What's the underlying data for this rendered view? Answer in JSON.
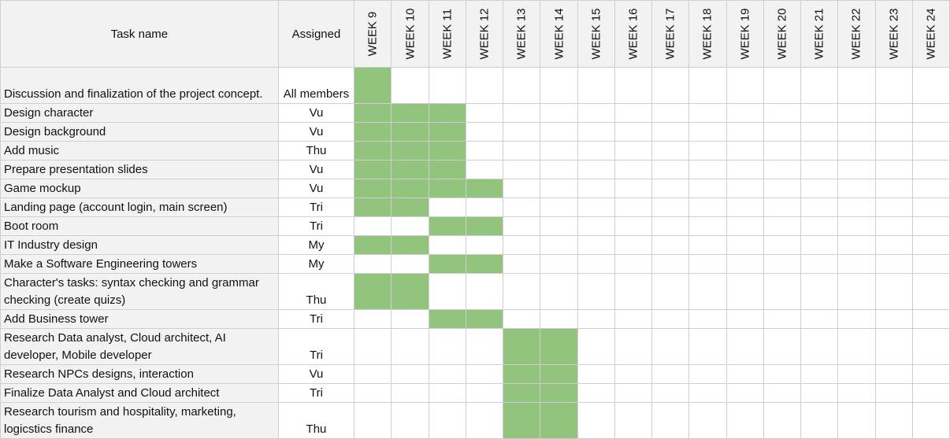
{
  "header": {
    "task_name": "Task name",
    "assigned": "Assigned",
    "weeks": [
      "WEEK 9",
      "WEEK 10",
      "WEEK 11",
      "WEEK 12",
      "WEEK 13",
      "WEEK 14",
      "WEEK 15",
      "WEEK 16",
      "WEEK 17",
      "WEEK 18",
      "WEEK 19",
      "WEEK 20",
      "WEEK 21",
      "WEEK 22",
      "WEEK 23",
      "WEEK 24"
    ]
  },
  "colors": {
    "filled": "#93c47d",
    "header_bg": "#f2f2f2"
  },
  "rows": [
    {
      "task": "Discussion and finalization of the project concept.",
      "assigned": "All members",
      "weeks": [
        9
      ]
    },
    {
      "task": "Design character",
      "assigned": "Vu",
      "weeks": [
        9,
        10,
        11
      ]
    },
    {
      "task": "Design background",
      "assigned": "Vu",
      "weeks": [
        9,
        10,
        11
      ]
    },
    {
      "task": "Add music",
      "assigned": "Thu",
      "weeks": [
        9,
        10,
        11
      ]
    },
    {
      "task": "Prepare presentation slides",
      "assigned": "Vu",
      "weeks": [
        9,
        10,
        11
      ]
    },
    {
      "task": "Game mockup",
      "assigned": "Vu",
      "weeks": [
        9,
        10,
        11,
        12
      ]
    },
    {
      "task": "Landing page (account login, main screen)",
      "assigned": "Tri",
      "weeks": [
        9,
        10
      ]
    },
    {
      "task": "Boot room",
      "assigned": "Tri",
      "weeks": [
        11,
        12
      ]
    },
    {
      "task": "IT Industry design",
      "assigned": "My",
      "weeks": [
        9,
        10
      ]
    },
    {
      "task": "Make a Software Engineering towers",
      "assigned": "My",
      "weeks": [
        11,
        12
      ]
    },
    {
      "task": "Character's tasks: syntax checking and grammar checking (create quizs)",
      "assigned": "Thu",
      "weeks": [
        9,
        10
      ]
    },
    {
      "task": "Add Business tower",
      "assigned": "Tri",
      "weeks": [
        11,
        12
      ]
    },
    {
      "task": " Research Data analyst, Cloud architect, AI developer, Mobile developer",
      "assigned": "Tri",
      "weeks": [
        13,
        14
      ]
    },
    {
      "task": "Research NPCs designs, interaction",
      "assigned": "Vu",
      "weeks": [
        13,
        14
      ]
    },
    {
      "task": "Finalize Data Analyst and Cloud architect",
      "assigned": "Tri",
      "weeks": [
        13,
        14
      ]
    },
    {
      "task": "Research tourism and hospitality, marketing, logicstics finance",
      "assigned": "Thu",
      "weeks": [
        13,
        14
      ]
    }
  ]
}
